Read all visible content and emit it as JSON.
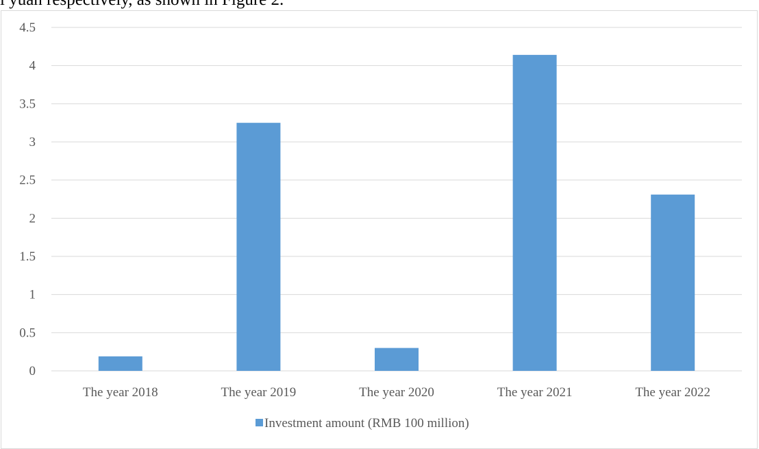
{
  "page": {
    "text_above": "l yuan respectively, as shown in Figure 2."
  },
  "colors": {
    "bar": "#5b9bd5",
    "gridline": "#d9d9d9",
    "axis_text": "#595959"
  },
  "chart_data": {
    "type": "bar",
    "categories": [
      "The year 2018",
      "The year 2019",
      "The year 2020",
      "The year 2021",
      "The year 2022"
    ],
    "series": [
      {
        "name": "Investment amount (RMB 100 million)",
        "values": [
          0.19,
          3.25,
          0.3,
          4.14,
          2.31
        ]
      }
    ],
    "ylim": [
      0,
      4.5
    ],
    "yticks": [
      "0",
      "0.5",
      "1",
      "1.5",
      "2",
      "2.5",
      "3",
      "3.5",
      "4",
      "4.5"
    ],
    "grid": true,
    "legend": "bottom"
  }
}
